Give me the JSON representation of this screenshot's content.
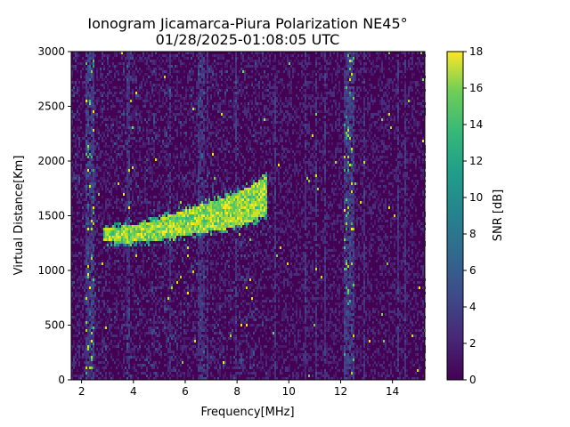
{
  "chart_data": {
    "type": "heatmap",
    "title": "Ionogram Jicamarca-Piura Polarization NE45°",
    "subtitle": "01/28/2025-01:08:05 UTC",
    "xlabel": "Frequency[MHz]",
    "ylabel": "Virtual Distance[Km]",
    "xlim": [
      1.6,
      15.25
    ],
    "ylim": [
      0,
      3000
    ],
    "x_ticks": [
      "2",
      "4",
      "6",
      "8",
      "10",
      "12",
      "14"
    ],
    "y_ticks": [
      "0",
      "500",
      "1000",
      "1500",
      "2000",
      "2500",
      "3000"
    ],
    "colorbar": {
      "label": "SNR [dB]",
      "range": [
        0,
        18
      ],
      "ticks": [
        "0",
        "2",
        "4",
        "6",
        "8",
        "10",
        "12",
        "14",
        "16",
        "18"
      ],
      "colormap": "viridis"
    },
    "colors": {
      "low": "#440154",
      "mid": "#21918c",
      "high": "#fde725"
    },
    "features": {
      "echo_trace": [
        {
          "freq": 2.8,
          "distance": 1330
        },
        {
          "freq": 3.5,
          "distance": 1340
        },
        {
          "freq": 4.5,
          "distance": 1360
        },
        {
          "freq": 5.5,
          "distance": 1420
        },
        {
          "freq": 6.5,
          "distance": 1480
        },
        {
          "freq": 7.5,
          "distance": 1530
        },
        {
          "freq": 8.5,
          "distance": 1620
        },
        {
          "freq": 9.1,
          "distance": 1700
        }
      ],
      "noise_bands_mhz": [
        2.3,
        12.3
      ]
    },
    "grid": false
  }
}
